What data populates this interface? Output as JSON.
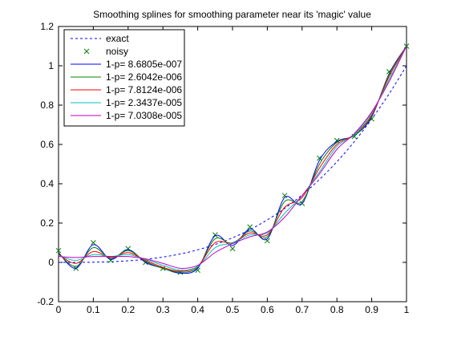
{
  "chart_data": {
    "type": "line",
    "title": "Smoothing splines for smoothing parameter near its 'magic' value",
    "xlabel": "",
    "ylabel": "",
    "xlim": [
      0,
      1
    ],
    "ylim": [
      -0.2,
      1.2
    ],
    "xticks": [
      0,
      0.1,
      0.2,
      0.3,
      0.4,
      0.5,
      0.6,
      0.7,
      0.8,
      0.9,
      1
    ],
    "yticks": [
      -0.2,
      0,
      0.2,
      0.4,
      0.6,
      0.8,
      1,
      1.2
    ],
    "grid": false,
    "legend_position": "top-left",
    "series": [
      {
        "name": "exact",
        "style": "dashed",
        "color": "#0000ff",
        "x": [
          0,
          0.05,
          0.1,
          0.15,
          0.2,
          0.25,
          0.3,
          0.35,
          0.4,
          0.45,
          0.5,
          0.55,
          0.6,
          0.65,
          0.7,
          0.75,
          0.8,
          0.85,
          0.9,
          0.95,
          1
        ],
        "y": [
          0,
          0.0001,
          0.001,
          0.0034,
          0.008,
          0.0156,
          0.027,
          0.0429,
          0.064,
          0.0911,
          0.125,
          0.1664,
          0.216,
          0.2746,
          0.343,
          0.4219,
          0.512,
          0.6141,
          0.729,
          0.8574,
          1
        ]
      },
      {
        "name": "noisy",
        "style": "markers",
        "marker": "x",
        "color": "#008000",
        "x": [
          0,
          0.05,
          0.1,
          0.15,
          0.2,
          0.25,
          0.3,
          0.35,
          0.4,
          0.45,
          0.5,
          0.55,
          0.6,
          0.65,
          0.7,
          0.75,
          0.8,
          0.85,
          0.9,
          0.95,
          1
        ],
        "y": [
          0.06,
          -0.03,
          0.1,
          0.01,
          0.07,
          0.0,
          -0.03,
          -0.05,
          -0.04,
          0.14,
          0.07,
          0.18,
          0.11,
          0.34,
          0.3,
          0.53,
          0.62,
          0.64,
          0.73,
          0.97,
          1.1
        ]
      },
      {
        "name": "1-p= 8.6805e-007",
        "color": "#0000ff",
        "x": [
          0,
          0.05,
          0.1,
          0.15,
          0.2,
          0.25,
          0.3,
          0.35,
          0.4,
          0.45,
          0.5,
          0.55,
          0.6,
          0.65,
          0.7,
          0.75,
          0.8,
          0.85,
          0.9,
          0.95,
          1
        ],
        "y": [
          0.05,
          -0.03,
          0.09,
          0.015,
          0.065,
          0.0,
          -0.03,
          -0.055,
          -0.03,
          0.135,
          0.085,
          0.17,
          0.12,
          0.33,
          0.3,
          0.52,
          0.615,
          0.645,
          0.74,
          0.96,
          1.1
        ]
      },
      {
        "name": "1-p= 2.6042e-006",
        "color": "#008000",
        "x": [
          0,
          0.05,
          0.1,
          0.15,
          0.2,
          0.25,
          0.3,
          0.35,
          0.4,
          0.45,
          0.5,
          0.55,
          0.6,
          0.65,
          0.7,
          0.75,
          0.8,
          0.85,
          0.9,
          0.95,
          1
        ],
        "y": [
          0.045,
          -0.02,
          0.075,
          0.02,
          0.06,
          0.005,
          -0.03,
          -0.05,
          -0.025,
          0.12,
          0.095,
          0.16,
          0.13,
          0.31,
          0.31,
          0.5,
          0.61,
          0.645,
          0.745,
          0.955,
          1.1
        ]
      },
      {
        "name": "1-p= 7.8124e-006",
        "color": "#ff0000",
        "x": [
          0,
          0.05,
          0.1,
          0.15,
          0.2,
          0.25,
          0.3,
          0.35,
          0.4,
          0.45,
          0.5,
          0.55,
          0.6,
          0.65,
          0.7,
          0.75,
          0.8,
          0.85,
          0.9,
          0.95,
          1
        ],
        "y": [
          0.04,
          -0.005,
          0.055,
          0.025,
          0.05,
          0.01,
          -0.025,
          -0.045,
          -0.02,
          0.1,
          0.1,
          0.15,
          0.14,
          0.28,
          0.33,
          0.48,
          0.6,
          0.65,
          0.75,
          0.945,
          1.1
        ]
      },
      {
        "name": "1-p= 2.3437e-005",
        "color": "#00bfbf",
        "x": [
          0,
          0.05,
          0.1,
          0.15,
          0.2,
          0.25,
          0.3,
          0.35,
          0.4,
          0.45,
          0.5,
          0.55,
          0.6,
          0.65,
          0.7,
          0.75,
          0.8,
          0.85,
          0.9,
          0.95,
          1
        ],
        "y": [
          0.035,
          0.01,
          0.04,
          0.03,
          0.04,
          0.015,
          -0.015,
          -0.04,
          -0.02,
          0.075,
          0.1,
          0.14,
          0.15,
          0.25,
          0.34,
          0.46,
          0.59,
          0.65,
          0.76,
          0.93,
          1.1
        ]
      },
      {
        "name": "1-p= 7.0308e-005",
        "color": "#bf00bf",
        "x": [
          0,
          0.05,
          0.1,
          0.15,
          0.2,
          0.25,
          0.3,
          0.35,
          0.4,
          0.45,
          0.5,
          0.55,
          0.6,
          0.65,
          0.7,
          0.75,
          0.8,
          0.85,
          0.9,
          0.95,
          1
        ],
        "y": [
          0.03,
          0.025,
          0.03,
          0.03,
          0.03,
          0.018,
          -0.005,
          -0.03,
          -0.015,
          0.05,
          0.095,
          0.13,
          0.155,
          0.23,
          0.34,
          0.45,
          0.575,
          0.655,
          0.765,
          0.92,
          1.1
        ]
      }
    ]
  }
}
